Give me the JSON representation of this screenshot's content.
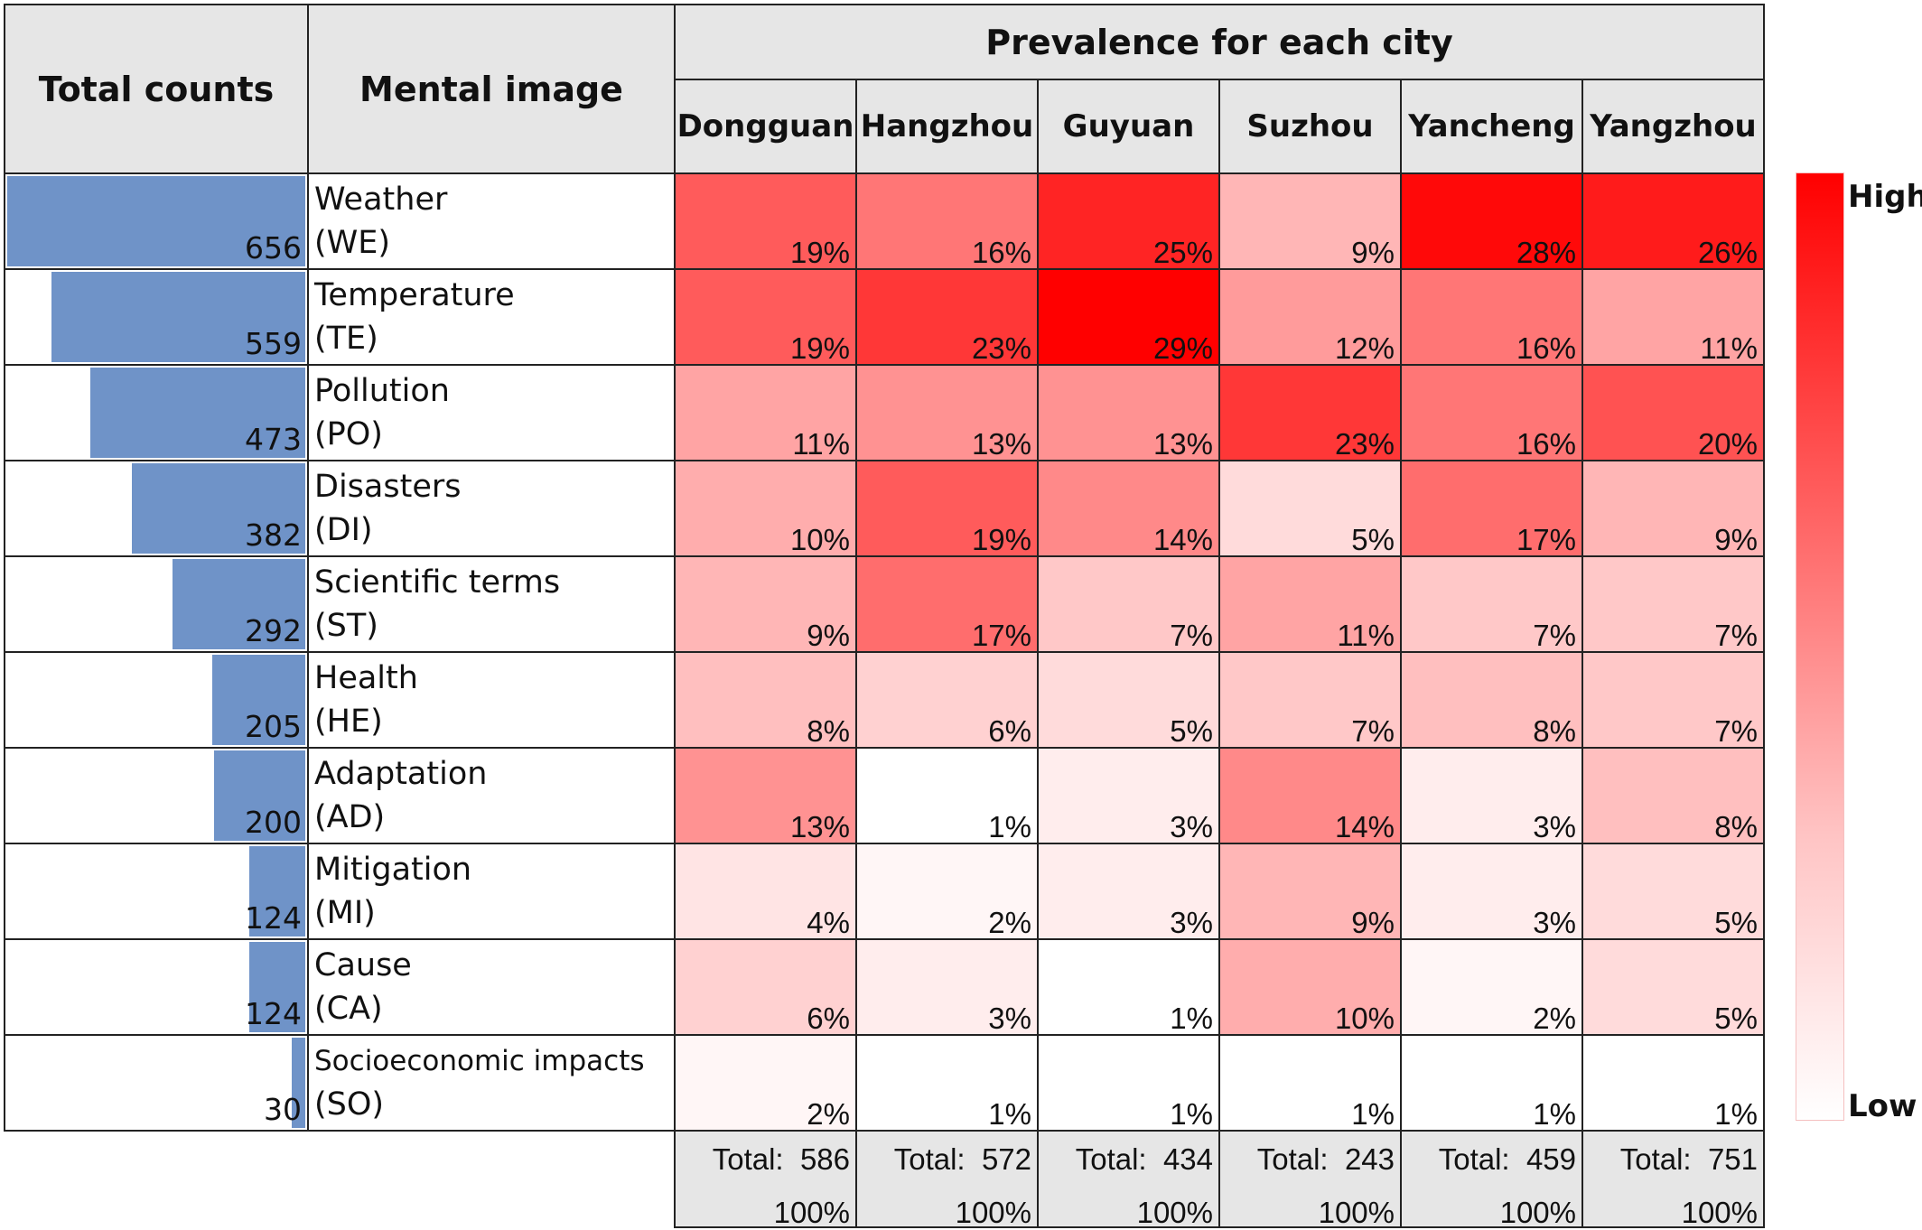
{
  "headers": {
    "total_counts": "Total counts",
    "mental_image": "Mental image",
    "prevalence": "Prevalence for each city"
  },
  "legend": {
    "high": "High",
    "low": "Low",
    "high_color": "#ff0000",
    "low_color": "#ffffff"
  },
  "colors": {
    "bar": "#6f93c8",
    "header_bg": "#e6e6e6"
  },
  "chart_data": {
    "type": "heatmap",
    "cities": [
      "Dongguan",
      "Hangzhou",
      "Guyuan",
      "Suzhou",
      "Yancheng",
      "Yangzhou"
    ],
    "rows": [
      {
        "name": "Weather",
        "code": "(WE)",
        "count": 656,
        "values": [
          "19%",
          "16%",
          "25%",
          "9%",
          "28%",
          "26%"
        ]
      },
      {
        "name": "Temperature",
        "code": "(TE)",
        "count": 559,
        "values": [
          "19%",
          "23%",
          "29%",
          "12%",
          "16%",
          "11%"
        ]
      },
      {
        "name": "Pollution",
        "code": "(PO)",
        "count": 473,
        "values": [
          "11%",
          "13%",
          "13%",
          "23%",
          "16%",
          "20%"
        ]
      },
      {
        "name": "Disasters",
        "code": "(DI)",
        "count": 382,
        "values": [
          "10%",
          "19%",
          "14%",
          "5%",
          "17%",
          "9%"
        ]
      },
      {
        "name": "Scientific terms",
        "code": "(ST)",
        "count": 292,
        "values": [
          "9%",
          "17%",
          "7%",
          "11%",
          "7%",
          "7%"
        ]
      },
      {
        "name": "Health",
        "code": "(HE)",
        "count": 205,
        "values": [
          "8%",
          "6%",
          "5%",
          "7%",
          "8%",
          "7%"
        ]
      },
      {
        "name": "Adaptation",
        "code": "(AD)",
        "count": 200,
        "values": [
          "13%",
          "1%",
          "3%",
          "14%",
          "3%",
          "8%"
        ]
      },
      {
        "name": "Mitigation",
        "code": "(MI)",
        "count": 124,
        "values": [
          "4%",
          "2%",
          "3%",
          "9%",
          "3%",
          "5%"
        ]
      },
      {
        "name": "Cause",
        "code": "(CA)",
        "count": 124,
        "values": [
          "6%",
          "3%",
          "1%",
          "10%",
          "2%",
          "5%"
        ]
      },
      {
        "name": "Socioeconomic impacts",
        "code": "(SO)",
        "count": 30,
        "values": [
          "2%",
          "1%",
          "1%",
          "1%",
          "1%",
          "1%"
        ]
      }
    ],
    "totals": [
      {
        "label": "Total:",
        "n": "586",
        "pct": "100%"
      },
      {
        "label": "Total:",
        "n": "572",
        "pct": "100%"
      },
      {
        "label": "Total:",
        "n": "434",
        "pct": "100%"
      },
      {
        "label": "Total:",
        "n": "243",
        "pct": "100%"
      },
      {
        "label": "Total:",
        "n": "459",
        "pct": "100%"
      },
      {
        "label": "Total:",
        "n": "751",
        "pct": "100%"
      }
    ]
  }
}
